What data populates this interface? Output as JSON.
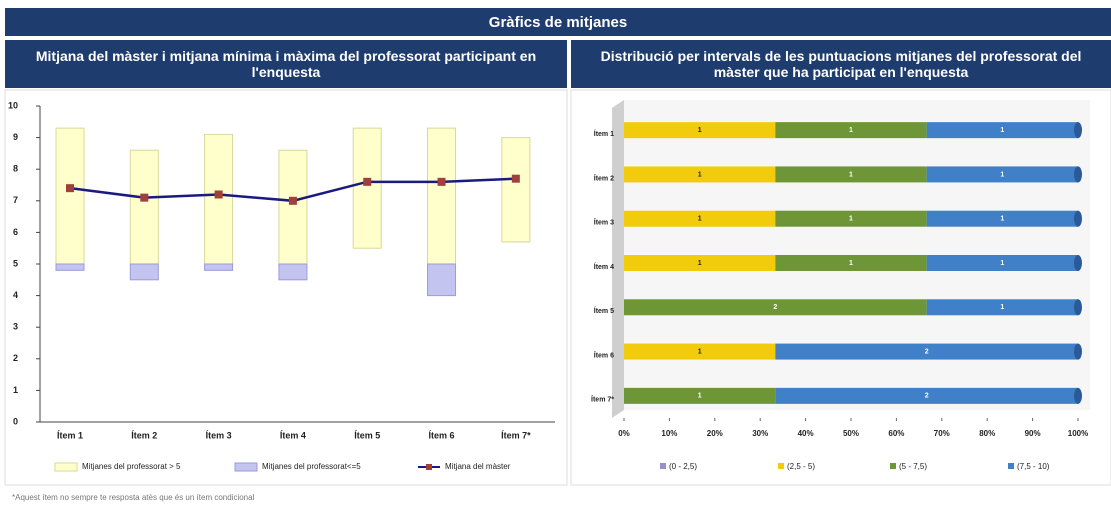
{
  "header": {
    "title": "Gràfics de mitjanes"
  },
  "footnote": "*Aquest ítem no sempre te resposta atès que és un ítem condicional",
  "chart_data": [
    {
      "type": "combo",
      "title": "Mitjana del màster i mitjana mínima i màxima del professorat participant en l'enquesta",
      "categories": [
        "Ítem 1",
        "Ítem 2",
        "Ítem 3",
        "Ítem 4",
        "Ítem 5",
        "Ítem 6",
        "Ítem 7*"
      ],
      "ylim": [
        0,
        10
      ],
      "yticks": [
        0,
        1,
        2,
        3,
        4,
        5,
        6,
        7,
        8,
        9,
        10
      ],
      "series": [
        {
          "name": "Mitjanes del professorat > 5",
          "color": "#ffffcc",
          "low": [
            5,
            5,
            5,
            5,
            5.5,
            5,
            5.7
          ],
          "high": [
            9.3,
            8.6,
            9.1,
            8.6,
            9.3,
            9.3,
            9.0
          ]
        },
        {
          "name": "Mitjanes del professorat<=5",
          "color": "#c4c4f0",
          "low": [
            4.8,
            4.5,
            4.8,
            4.5,
            null,
            4,
            null
          ],
          "high": [
            5,
            5,
            5,
            5,
            null,
            5,
            null
          ]
        },
        {
          "name": "Mitjana del màster",
          "color": "#1a1a80",
          "marker_color": "#a0403a",
          "values": [
            7.4,
            7.1,
            7.2,
            7.0,
            7.6,
            7.6,
            7.7
          ]
        }
      ]
    },
    {
      "type": "bar",
      "orientation": "horizontal",
      "stacked": "percent",
      "title": "Distribució per intervals de les puntuacions mitjanes del professorat del màster que ha participat en l'enquesta",
      "categories": [
        "Ítem 1",
        "Ítem 2",
        "Ítem 3",
        "Ítem 4",
        "Ítem 5",
        "Ítem 6",
        "Ítem 7*"
      ],
      "xlim": [
        0,
        100
      ],
      "xticks": [
        {
          "value": 0,
          "label": "0%"
        },
        {
          "value": 10,
          "label": "10%"
        },
        {
          "value": 20,
          "label": "20%"
        },
        {
          "value": 30,
          "label": "30%"
        },
        {
          "value": 40,
          "label": "40%"
        },
        {
          "value": 50,
          "label": "50%"
        },
        {
          "value": 60,
          "label": "60%"
        },
        {
          "value": 70,
          "label": "70%"
        },
        {
          "value": 80,
          "label": "80%"
        },
        {
          "value": 90,
          "label": "90%"
        },
        {
          "value": 100,
          "label": "100%"
        }
      ],
      "series": [
        {
          "name": "(0 - 2,5)",
          "color": "#9a8fc8",
          "values": [
            0,
            0,
            0,
            0,
            0,
            0,
            0
          ]
        },
        {
          "name": "(2,5 - 5)",
          "color": "#f2cc0c",
          "values": [
            1,
            1,
            1,
            1,
            0,
            1,
            0
          ]
        },
        {
          "name": "(5 - 7,5)",
          "color": "#6f9636",
          "values": [
            1,
            1,
            1,
            1,
            2,
            0,
            1
          ]
        },
        {
          "name": "(7,5 - 10)",
          "color": "#3f80c8",
          "values": [
            1,
            1,
            1,
            1,
            1,
            2,
            2
          ]
        }
      ]
    }
  ]
}
